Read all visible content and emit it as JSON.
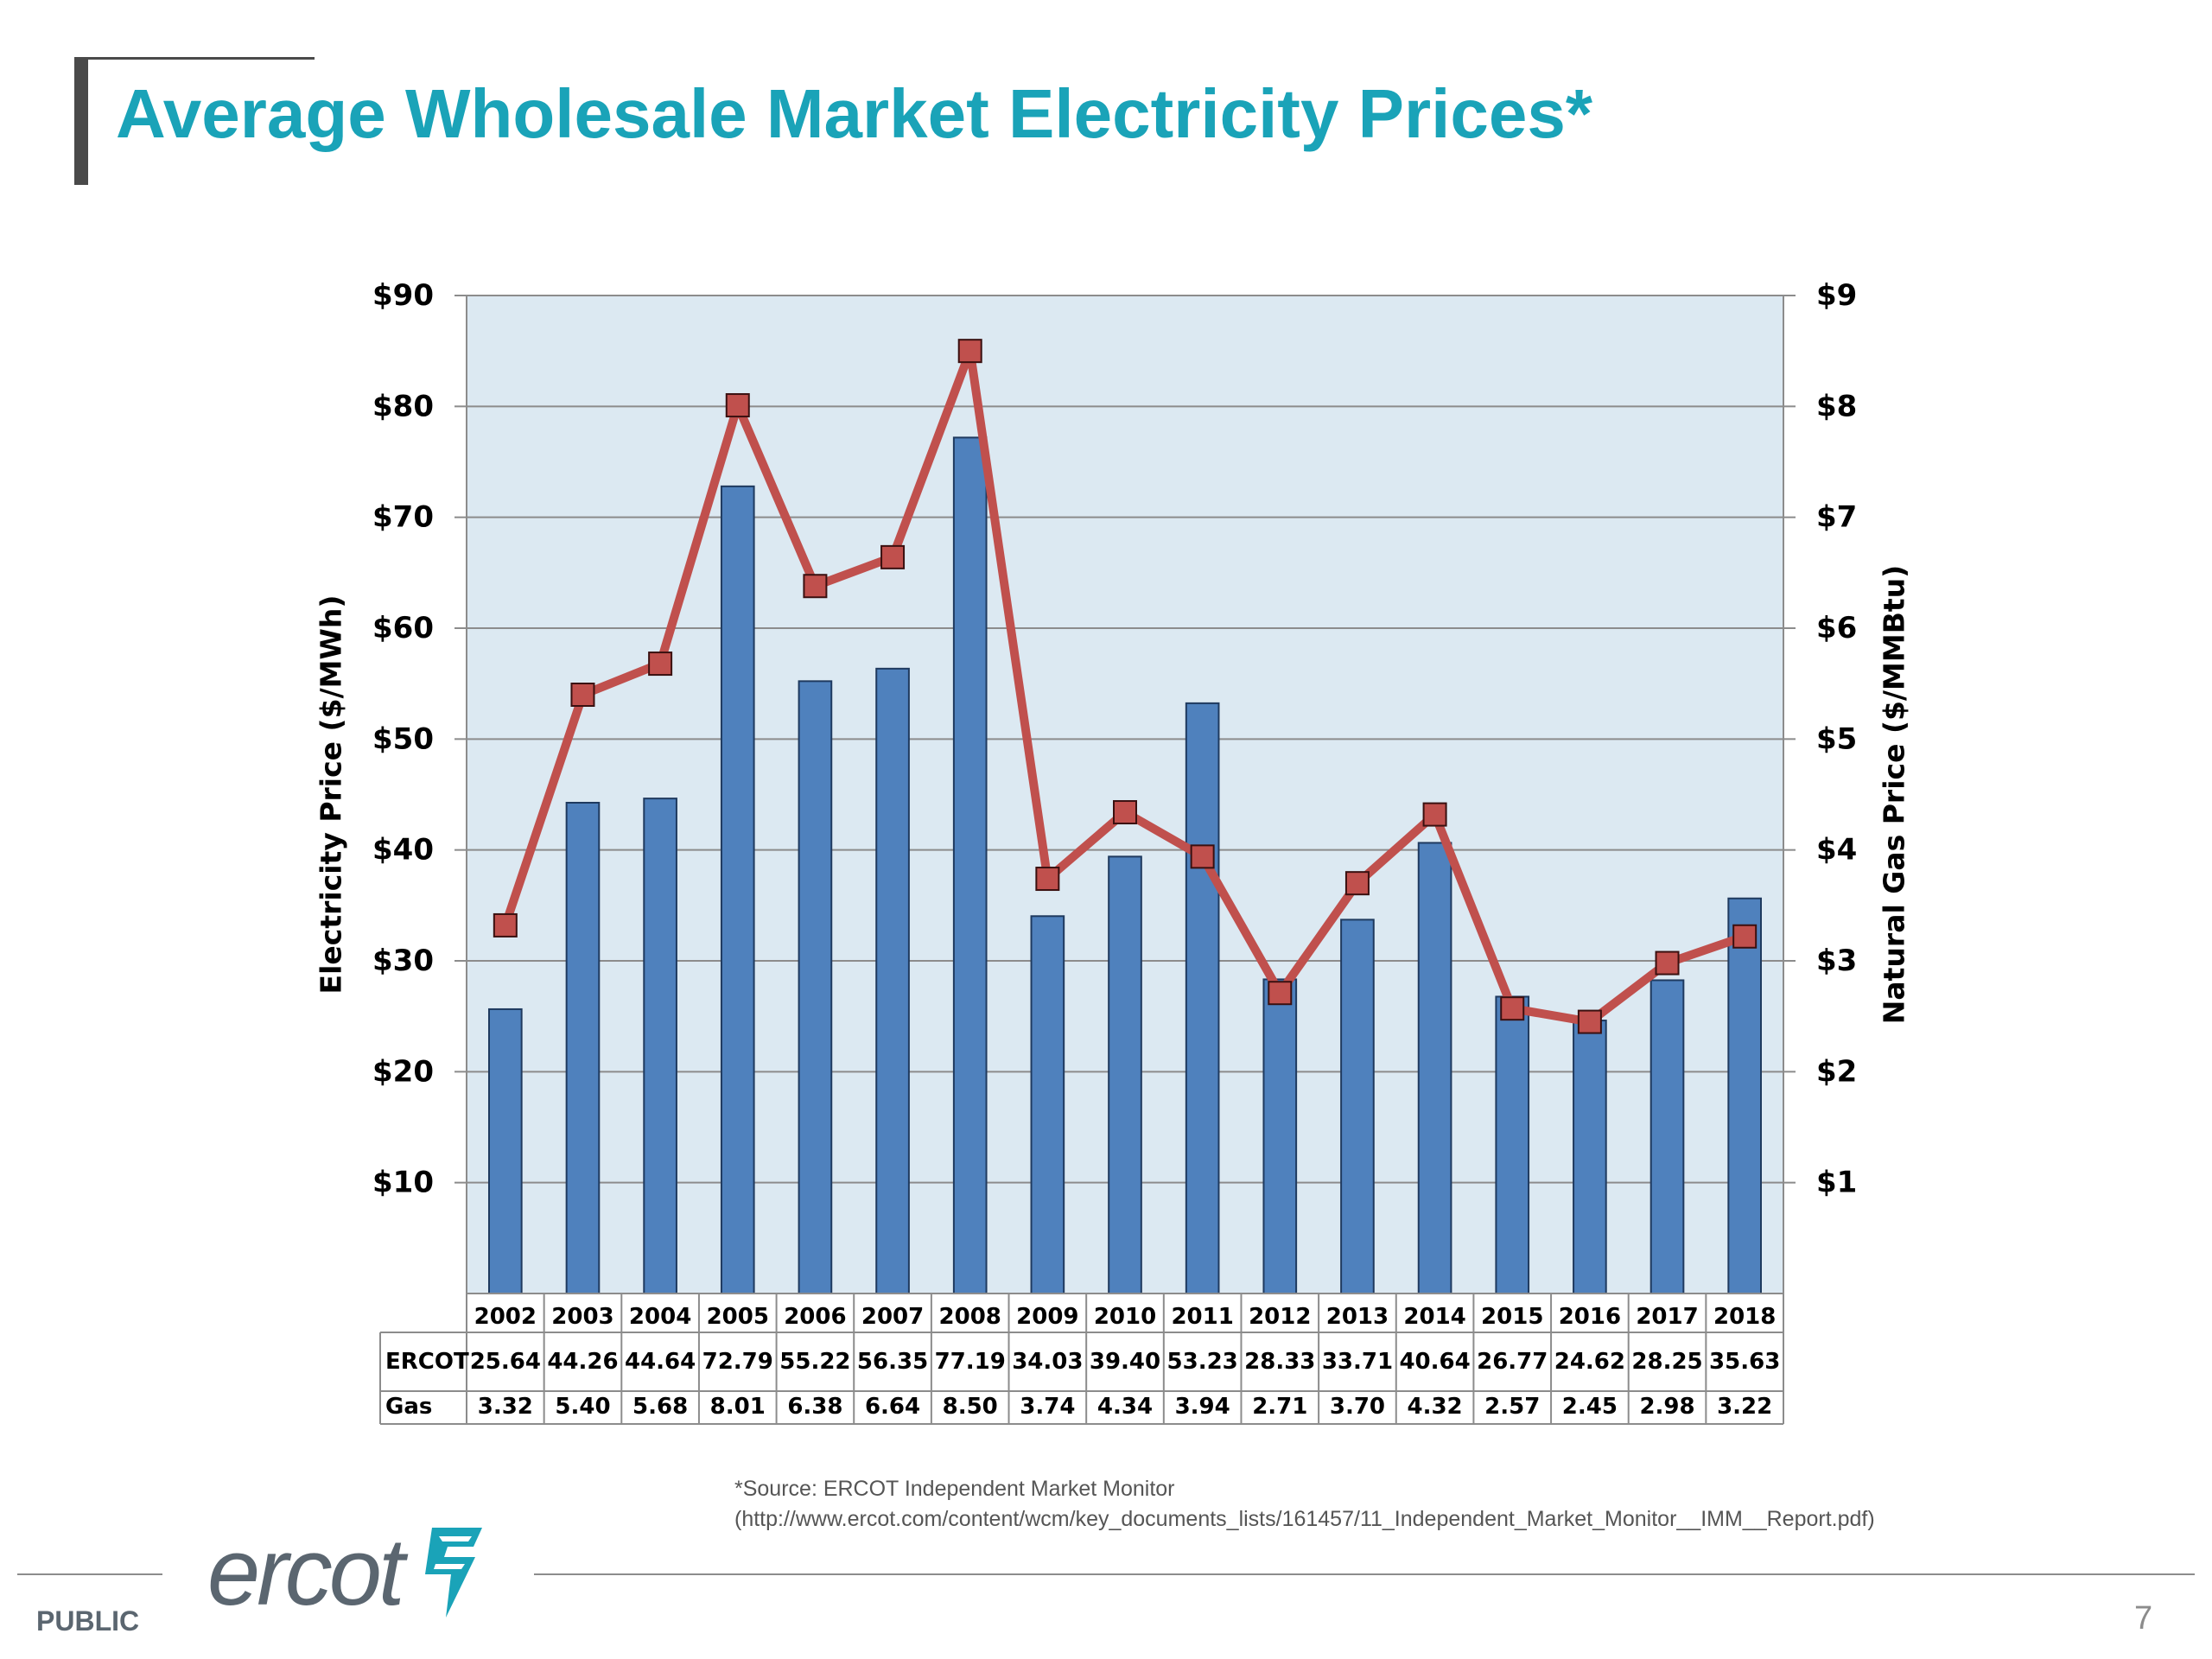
{
  "title": "Average Wholesale Market Electricity Prices*",
  "chart_data": {
    "type": "bar+line",
    "categories": [
      "2002",
      "2003",
      "2004",
      "2005",
      "2006",
      "2007",
      "2008",
      "2009",
      "2010",
      "2011",
      "2012",
      "2013",
      "2014",
      "2015",
      "2016",
      "2017",
      "2018"
    ],
    "series": [
      {
        "name": "ERCOT",
        "type": "bar",
        "axis": "left",
        "color": "#4f81bd",
        "values": [
          25.64,
          44.26,
          44.64,
          72.79,
          55.22,
          56.35,
          77.19,
          34.03,
          39.4,
          53.23,
          28.33,
          33.71,
          40.64,
          26.77,
          24.62,
          28.25,
          35.63
        ],
        "labels": [
          "25.64",
          "44.26",
          "44.64",
          "72.79",
          "55.22",
          "56.35",
          "77.19",
          "34.03",
          "39.40",
          "53.23",
          "28.33",
          "33.71",
          "40.64",
          "26.77",
          "24.62",
          "28.25",
          "35.63"
        ]
      },
      {
        "name": "Gas",
        "type": "line",
        "axis": "right",
        "color": "#c0504d",
        "values": [
          3.32,
          5.4,
          5.68,
          8.01,
          6.38,
          6.64,
          8.5,
          3.74,
          4.34,
          3.94,
          2.71,
          3.7,
          4.32,
          2.57,
          2.45,
          2.98,
          3.22
        ],
        "labels": [
          "3.32",
          "5.40",
          "5.68",
          "8.01",
          "6.38",
          "6.64",
          "8.50",
          "3.74",
          "4.34",
          "3.94",
          "2.71",
          "3.70",
          "4.32",
          "2.57",
          "2.45",
          "2.98",
          "3.22"
        ]
      }
    ],
    "ylabel_left": "Electricity Price ($/MWh)",
    "ylabel_right": "Natural Gas Price ($/MMBtu)",
    "ylim_left": [
      0,
      90
    ],
    "ylim_right": [
      0,
      9
    ],
    "yticks_left": [
      "$10",
      "$20",
      "$30",
      "$40",
      "$50",
      "$60",
      "$70",
      "$80",
      "$90"
    ],
    "yticks_right": [
      "$1",
      "$2",
      "$3",
      "$4",
      "$5",
      "$6",
      "$7",
      "$8",
      "$9"
    ],
    "plot_background": "#dce9f2",
    "grid": true,
    "data_table": true
  },
  "source": {
    "line1": "*Source: ERCOT Independent Market Monitor",
    "line2": "(http://www.ercot.com/content/wcm/key_documents_lists/161457/11_Independent_Market_Monitor__IMM__Report.pdf)"
  },
  "logo": {
    "text": "ercot",
    "icon": "ercot-lightning-mark-icon",
    "color": "#5b6670",
    "accent": "#1aa3b8"
  },
  "footer": {
    "label": "PUBLIC",
    "page": "7"
  }
}
